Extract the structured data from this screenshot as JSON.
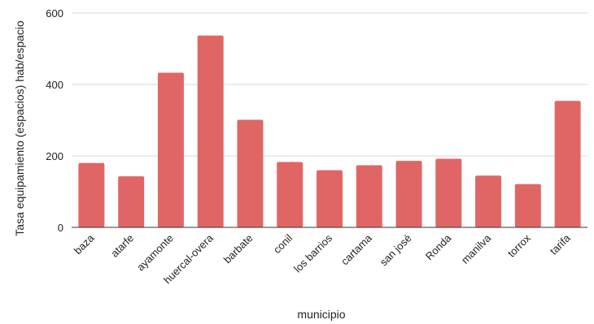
{
  "chart_data": {
    "type": "bar",
    "title": "",
    "xlabel": "municipio",
    "ylabel": "Tasa equipamiento (espacios) hab/espacio",
    "categories": [
      "baza",
      "atarfe",
      "ayamonte",
      "huercal-overa",
      "barbate",
      "conil",
      "los barrios",
      "cartama",
      "san josé",
      "Ronda",
      "manilva",
      "torrox",
      "tarifa"
    ],
    "values": [
      180,
      143,
      433,
      537,
      301,
      183,
      160,
      174,
      186,
      192,
      145,
      121,
      354
    ],
    "ylim": [
      0,
      600
    ],
    "yticks": [
      0,
      200,
      400,
      600
    ],
    "grid": true,
    "legend": "none",
    "bar_color": "#e06666",
    "grid_color": "#d9d9d9",
    "axis_color": "#333333"
  }
}
